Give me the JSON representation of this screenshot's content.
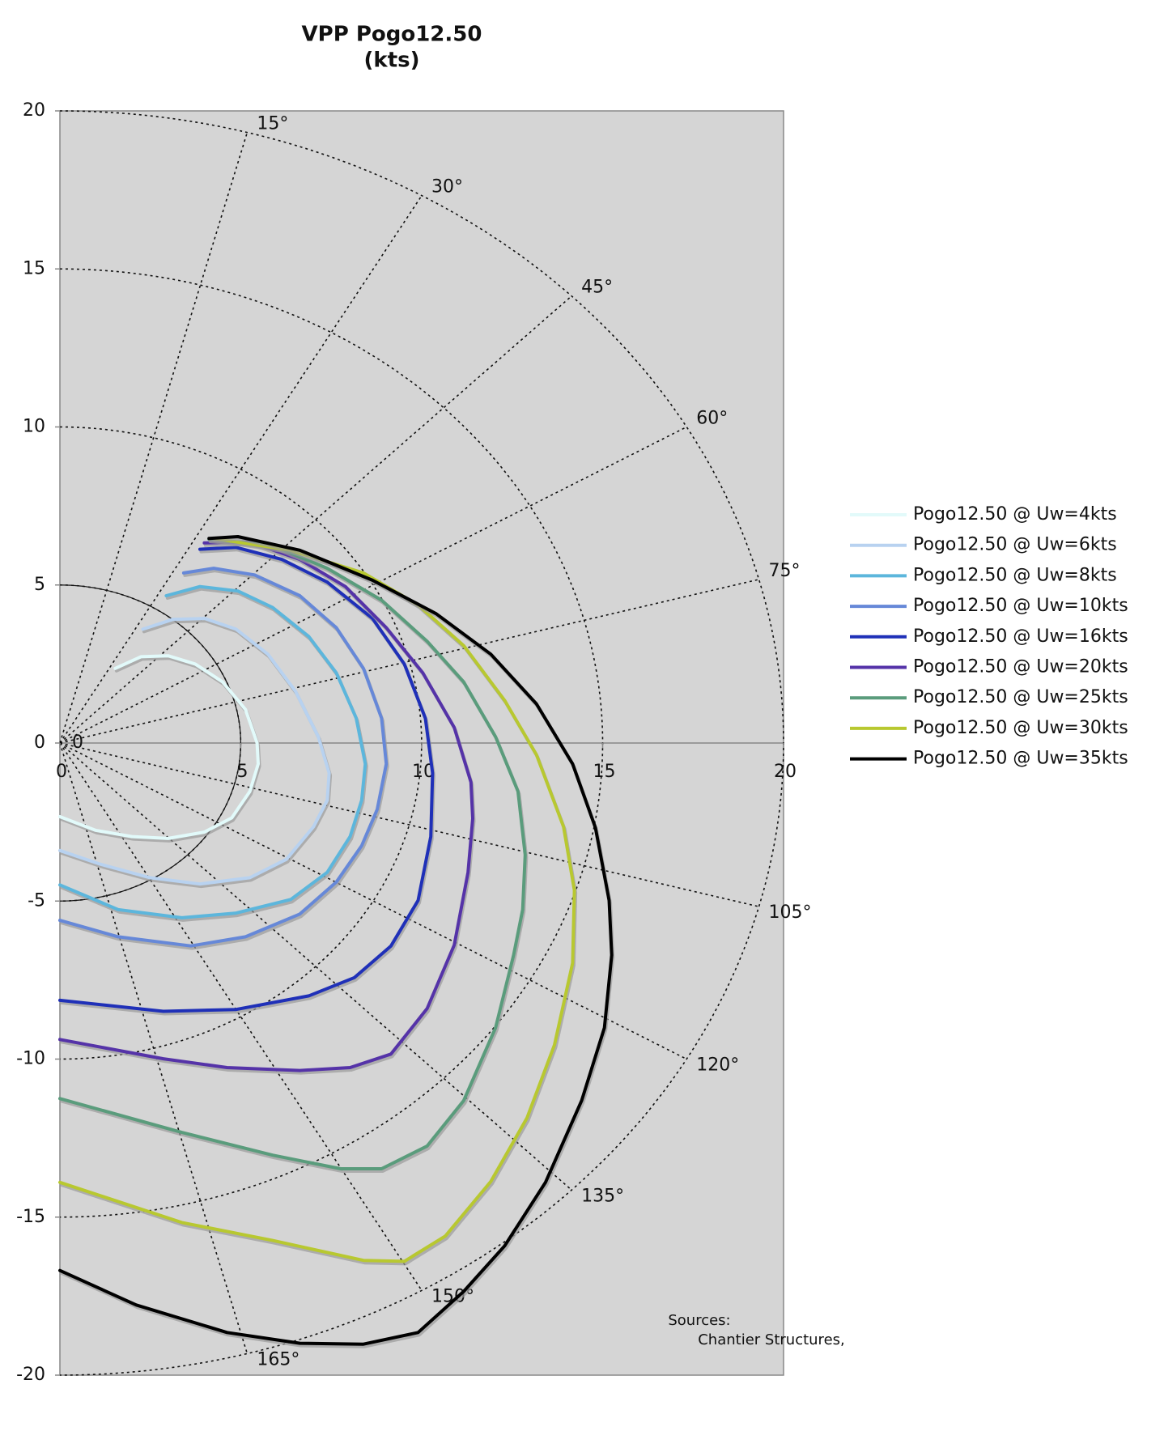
{
  "chart_data": {
    "type": "line",
    "title": "VPP Pogo12.50",
    "subtitle": "(kts)",
    "xlim": [
      0,
      20
    ],
    "ylim": [
      -20,
      20
    ],
    "xticks": [
      0,
      5,
      10,
      15,
      20
    ],
    "yticks": [
      20,
      15,
      10,
      5,
      0,
      -5,
      -10,
      -15,
      -20
    ],
    "polar": {
      "rings": [
        5,
        10,
        15,
        20
      ],
      "angles": [
        {
          "value": 15,
          "label": "15°"
        },
        {
          "value": 30,
          "label": "30°"
        },
        {
          "value": 45,
          "label": "45°"
        },
        {
          "value": 60,
          "label": "60°"
        },
        {
          "value": 75,
          "label": "75°"
        },
        {
          "value": 105,
          "label": "105°"
        },
        {
          "value": 120,
          "label": "120°"
        },
        {
          "value": 135,
          "label": "135°"
        },
        {
          "value": 150,
          "label": "150°"
        },
        {
          "value": 165,
          "label": "165°"
        }
      ],
      "origin_label": "0"
    },
    "annotations": [
      "Sources:",
      "Chantier Structures,"
    ],
    "series": [
      {
        "name": "Pogo12.50 @ Uw=4kts",
        "color": "#e2fafa",
        "x": [
          1.53,
          2.24,
          2.99,
          3.74,
          4.5,
          5.13,
          5.45,
          5.48,
          5.25,
          4.75,
          3.99,
          2.99,
          1.99,
          0.98,
          0
        ],
        "values": [
          2.36,
          2.73,
          2.76,
          2.5,
          1.93,
          1.06,
          0,
          -0.66,
          -1.53,
          -2.37,
          -2.82,
          -3.02,
          -2.96,
          -2.76,
          -2.33
        ]
      },
      {
        "name": "Pogo12.50 @ Uw=6kts",
        "color": "#b8d2f0",
        "x": [
          2.29,
          3.12,
          4.0,
          4.87,
          5.75,
          6.51,
          7.14,
          7.44,
          7.39,
          7.01,
          6.26,
          5.25,
          3.87,
          2.49,
          1.11,
          0
        ],
        "values": [
          3.6,
          3.91,
          3.94,
          3.6,
          2.81,
          1.64,
          0.2,
          -0.95,
          -1.81,
          -2.65,
          -3.68,
          -4.26,
          -4.46,
          -4.26,
          -3.83,
          -3.4
        ]
      },
      {
        "name": "Pogo12.50 @ Uw=8kts",
        "color": "#5cb6dc",
        "x": [
          2.94,
          3.87,
          4.92,
          5.88,
          6.88,
          7.64,
          8.19,
          8.44,
          8.34,
          8.02,
          7.39,
          6.38,
          4.87,
          3.37,
          1.61,
          0
        ],
        "values": [
          4.66,
          4.95,
          4.81,
          4.29,
          3.37,
          2.22,
          0.78,
          -0.66,
          -1.81,
          -2.96,
          -4.09,
          -4.95,
          -5.38,
          -5.53,
          -5.27,
          -4.49
        ]
      },
      {
        "name": "Pogo12.50 @ Uw=10kts",
        "color": "#6688d8",
        "x": [
          3.42,
          4.25,
          5.38,
          6.63,
          7.64,
          8.39,
          8.89,
          9.02,
          8.77,
          8.34,
          7.64,
          6.63,
          5.13,
          3.62,
          1.61,
          0
        ],
        "values": [
          5.38,
          5.53,
          5.32,
          4.66,
          3.65,
          2.36,
          0.78,
          -0.66,
          -2.1,
          -3.25,
          -4.4,
          -5.41,
          -6.13,
          -6.42,
          -6.13,
          -5.61
        ]
      },
      {
        "name": "Pogo12.50 @ Uw=16kts",
        "color": "#1f30b8",
        "x": [
          3.87,
          4.87,
          6.13,
          7.39,
          8.64,
          9.52,
          10.1,
          10.3,
          10.25,
          9.9,
          9.15,
          8.14,
          6.88,
          4.87,
          2.86,
          0
        ],
        "values": [
          6.13,
          6.19,
          5.81,
          5.09,
          3.94,
          2.5,
          0.78,
          -0.95,
          -2.96,
          -4.98,
          -6.42,
          -7.42,
          -8.0,
          -8.43,
          -8.49,
          -8.14
        ]
      },
      {
        "name": "Pogo12.50 @ Uw=20kts",
        "color": "#5533a8",
        "x": [
          3.99,
          5.25,
          6.63,
          7.89,
          9.02,
          10.03,
          10.9,
          11.36,
          11.41,
          11.28,
          10.9,
          10.15,
          9.15,
          8.02,
          6.63,
          4.62,
          2.86,
          0
        ],
        "values": [
          6.33,
          6.36,
          5.81,
          4.95,
          3.65,
          2.22,
          0.49,
          -1.24,
          -2.39,
          -4.09,
          -6.39,
          -8.4,
          -9.84,
          -10.27,
          -10.36,
          -10.27,
          -9.99,
          -9.38
        ]
      },
      {
        "name": "Pogo12.50 @ Uw=25kts",
        "color": "#5a9c7c",
        "x": [
          4.12,
          5.88,
          7.39,
          8.89,
          10.15,
          11.16,
          12.04,
          12.66,
          12.86,
          12.79,
          12.54,
          12.04,
          11.16,
          10.15,
          8.89,
          7.76,
          5.88,
          3.37,
          0
        ],
        "values": [
          6.45,
          6.25,
          5.53,
          4.52,
          3.22,
          1.93,
          0.2,
          -1.53,
          -3.54,
          -5.27,
          -6.71,
          -9.01,
          -11.31,
          -12.75,
          -13.47,
          -13.47,
          -13.04,
          -12.32,
          -11.25
        ]
      },
      {
        "name": "Pogo12.50 @ Uw=30kts",
        "color": "#b8c830",
        "x": [
          4.25,
          6.38,
          8.39,
          9.9,
          11.16,
          12.29,
          13.17,
          13.92,
          14.22,
          14.17,
          13.67,
          12.91,
          11.91,
          10.65,
          9.52,
          8.39,
          5.88,
          3.37,
          0
        ],
        "values": [
          6.47,
          6.1,
          5.38,
          4.37,
          3.08,
          1.35,
          -0.37,
          -2.65,
          -4.66,
          -6.96,
          -9.55,
          -11.86,
          -13.87,
          -15.6,
          -16.4,
          -16.37,
          -15.74,
          -15.17,
          -13.9
        ]
      },
      {
        "name": "Pogo12.50 @ Uw=35kts",
        "color": "#000000",
        "x": [
          4.12,
          4.92,
          6.63,
          8.64,
          10.4,
          11.91,
          13.17,
          14.17,
          14.8,
          15.18,
          15.25,
          15.05,
          14.42,
          13.42,
          12.29,
          11.16,
          9.9,
          8.39,
          6.63,
          4.62,
          2.11,
          0
        ],
        "values": [
          6.47,
          6.53,
          6.1,
          5.15,
          4.09,
          2.81,
          1.24,
          -0.66,
          -2.68,
          -4.98,
          -6.71,
          -9.01,
          -11.31,
          -13.9,
          -15.91,
          -17.35,
          -18.65,
          -19.02,
          -18.99,
          -18.65,
          -17.78,
          -16.69
        ]
      }
    ]
  }
}
